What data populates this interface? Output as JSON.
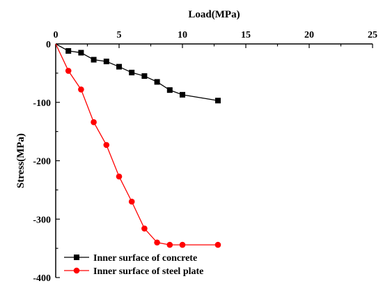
{
  "chart_data": {
    "type": "line",
    "xlabel": "Load(MPa)",
    "ylabel": "Stress(MPa)",
    "xlim": [
      0,
      25
    ],
    "ylim": [
      -400,
      0
    ],
    "x_ticks": [
      "0",
      "5",
      "10",
      "15",
      "20",
      "25"
    ],
    "y_ticks": [
      "0",
      "-100",
      "-200",
      "-300",
      "-400"
    ],
    "x_axis_position": "top",
    "grid": false,
    "legend_position": "bottom-left",
    "series": [
      {
        "name": "Inner surface of concrete",
        "color": "#000000",
        "marker": "square",
        "x": [
          0,
          1,
          2,
          3,
          4,
          5,
          6,
          7,
          8,
          9,
          10,
          12.8
        ],
        "y": [
          0,
          -12,
          -15,
          -27,
          -30,
          -39,
          -49,
          -55,
          -65,
          -79,
          -87,
          -97
        ]
      },
      {
        "name": "Inner surface of steel plate",
        "color": "#ff0000",
        "marker": "circle",
        "x": [
          0,
          1,
          2,
          3,
          4,
          5,
          6,
          7,
          8,
          9,
          10,
          12.8
        ],
        "y": [
          0,
          -46,
          -78,
          -134,
          -173,
          -227,
          -270,
          -316,
          -340,
          -344,
          -344,
          -344
        ]
      }
    ]
  }
}
